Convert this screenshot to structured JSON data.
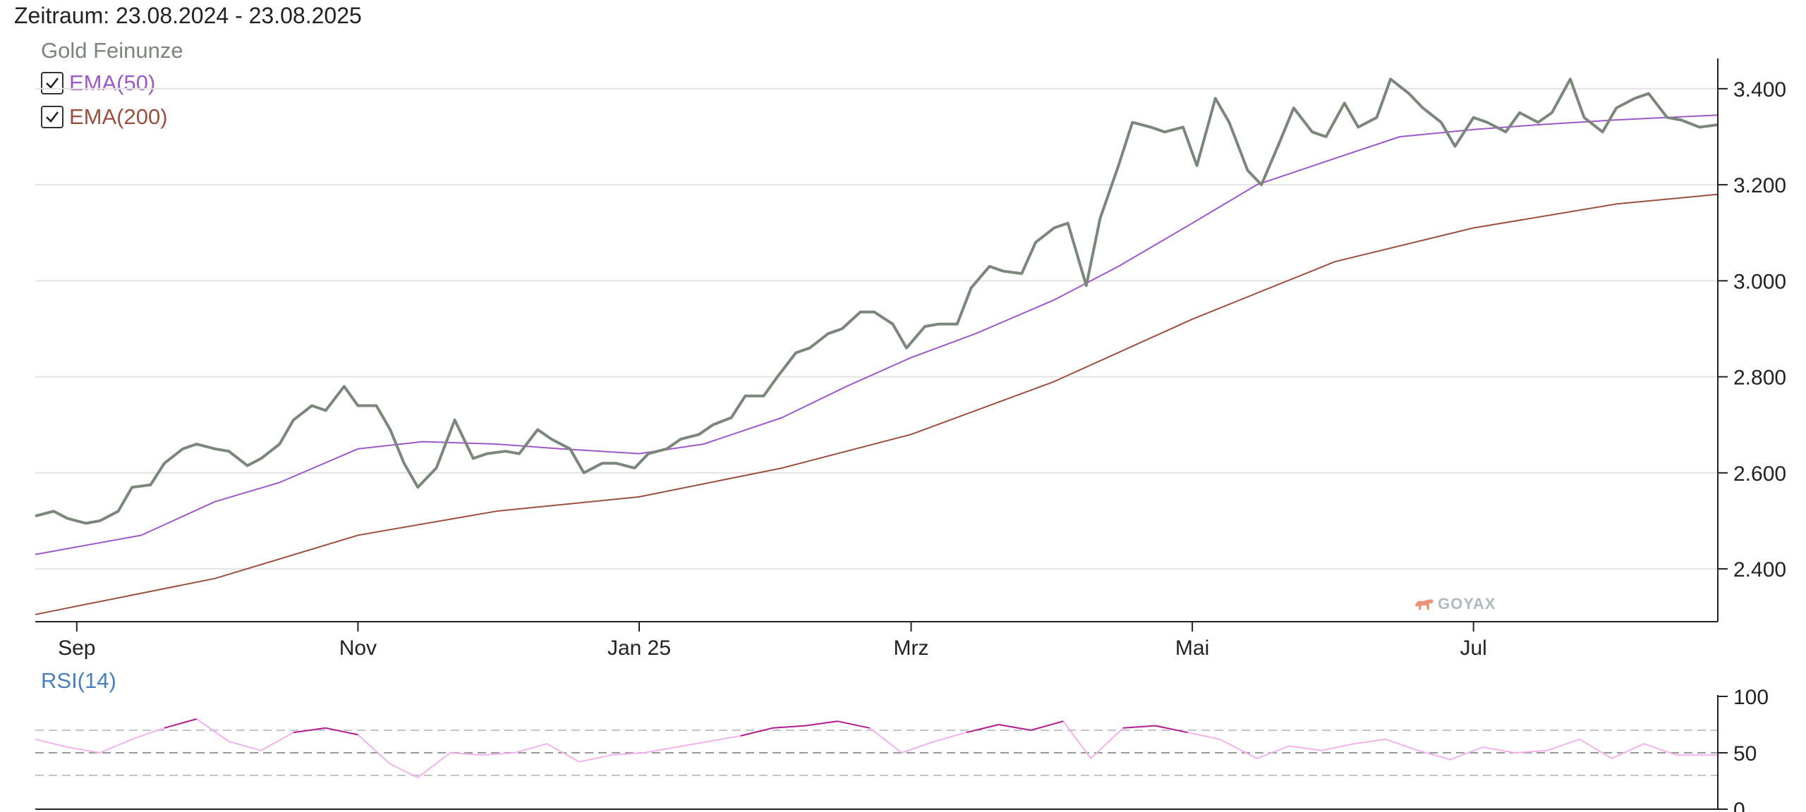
{
  "header": {
    "period": "Zeitraum: 23.08.2024 - 23.08.2025"
  },
  "legend": {
    "title": "Gold Feinunze",
    "ema50": {
      "label": "EMA(50)",
      "checked": true,
      "color": "#9b59c6"
    },
    "ema200": {
      "label": "EMA(200)",
      "checked": true,
      "color": "#9a5040"
    }
  },
  "rsi": {
    "label": "RSI(14)"
  },
  "logo": {
    "text": "GOYAX",
    "color": "#e8957a"
  },
  "colors": {
    "price": "#7b877b",
    "rsi": "#f2b3ec",
    "rsi_extreme": "#b0208e"
  },
  "chart_data": [
    {
      "type": "line",
      "x_start": "2024-08-23",
      "x_end": "2025-08-23",
      "y_axis_side": "right",
      "ylim": [
        2290,
        3460
      ],
      "yticks": [
        2400,
        2600,
        2800,
        3000,
        3200,
        3400
      ],
      "ytick_labels": [
        "2.400",
        "2.600",
        "2.800",
        "3.000",
        "3.200",
        "3.400"
      ],
      "xticks": [
        {
          "date": "2024-09-01",
          "label": "Sep"
        },
        {
          "date": "2024-11-01",
          "label": "Nov"
        },
        {
          "date": "2025-01-01",
          "label": "Jan 25"
        },
        {
          "date": "2025-03-01",
          "label": "Mrz"
        },
        {
          "date": "2025-05-01",
          "label": "Mai"
        },
        {
          "date": "2025-07-01",
          "label": "Jul"
        }
      ],
      "grid": "horizontal",
      "series": [
        {
          "name": "Gold Feinunze",
          "points": [
            [
              "2024-08-23",
              2510
            ],
            [
              "2024-08-27",
              2520
            ],
            [
              "2024-08-30",
              2505
            ],
            [
              "2024-09-03",
              2495
            ],
            [
              "2024-09-06",
              2500
            ],
            [
              "2024-09-10",
              2520
            ],
            [
              "2024-09-13",
              2570
            ],
            [
              "2024-09-17",
              2575
            ],
            [
              "2024-09-20",
              2620
            ],
            [
              "2024-09-24",
              2650
            ],
            [
              "2024-09-27",
              2660
            ],
            [
              "2024-10-01",
              2650
            ],
            [
              "2024-10-04",
              2645
            ],
            [
              "2024-10-08",
              2615
            ],
            [
              "2024-10-11",
              2630
            ],
            [
              "2024-10-15",
              2660
            ],
            [
              "2024-10-18",
              2710
            ],
            [
              "2024-10-22",
              2740
            ],
            [
              "2024-10-25",
              2730
            ],
            [
              "2024-10-29",
              2780
            ],
            [
              "2024-11-01",
              2740
            ],
            [
              "2024-11-05",
              2740
            ],
            [
              "2024-11-08",
              2690
            ],
            [
              "2024-11-11",
              2620
            ],
            [
              "2024-11-14",
              2570
            ],
            [
              "2024-11-18",
              2610
            ],
            [
              "2024-11-22",
              2710
            ],
            [
              "2024-11-26",
              2630
            ],
            [
              "2024-11-29",
              2640
            ],
            [
              "2024-12-03",
              2645
            ],
            [
              "2024-12-06",
              2640
            ],
            [
              "2024-12-10",
              2690
            ],
            [
              "2024-12-13",
              2670
            ],
            [
              "2024-12-17",
              2650
            ],
            [
              "2024-12-20",
              2600
            ],
            [
              "2024-12-24",
              2620
            ],
            [
              "2024-12-27",
              2620
            ],
            [
              "2024-12-31",
              2610
            ],
            [
              "2025-01-03",
              2640
            ],
            [
              "2025-01-07",
              2650
            ],
            [
              "2025-01-10",
              2670
            ],
            [
              "2025-01-14",
              2680
            ],
            [
              "2025-01-17",
              2700
            ],
            [
              "2025-01-21",
              2715
            ],
            [
              "2025-01-24",
              2760
            ],
            [
              "2025-01-28",
              2760
            ],
            [
              "2025-01-31",
              2800
            ],
            [
              "2025-02-04",
              2850
            ],
            [
              "2025-02-07",
              2860
            ],
            [
              "2025-02-11",
              2890
            ],
            [
              "2025-02-14",
              2900
            ],
            [
              "2025-02-18",
              2935
            ],
            [
              "2025-02-21",
              2935
            ],
            [
              "2025-02-25",
              2910
            ],
            [
              "2025-02-28",
              2860
            ],
            [
              "2025-03-04",
              2905
            ],
            [
              "2025-03-07",
              2910
            ],
            [
              "2025-03-11",
              2910
            ],
            [
              "2025-03-14",
              2985
            ],
            [
              "2025-03-18",
              3030
            ],
            [
              "2025-03-21",
              3020
            ],
            [
              "2025-03-25",
              3015
            ],
            [
              "2025-03-28",
              3080
            ],
            [
              "2025-04-01",
              3110
            ],
            [
              "2025-04-04",
              3120
            ],
            [
              "2025-04-08",
              2990
            ],
            [
              "2025-04-11",
              3130
            ],
            [
              "2025-04-15",
              3240
            ],
            [
              "2025-04-18",
              3330
            ],
            [
              "2025-04-22",
              3320
            ],
            [
              "2025-04-25",
              3310
            ],
            [
              "2025-04-29",
              3320
            ],
            [
              "2025-05-02",
              3240
            ],
            [
              "2025-05-06",
              3380
            ],
            [
              "2025-05-09",
              3330
            ],
            [
              "2025-05-13",
              3230
            ],
            [
              "2025-05-16",
              3200
            ],
            [
              "2025-05-20",
              3290
            ],
            [
              "2025-05-23",
              3360
            ],
            [
              "2025-05-27",
              3310
            ],
            [
              "2025-05-30",
              3300
            ],
            [
              "2025-06-03",
              3370
            ],
            [
              "2025-06-06",
              3320
            ],
            [
              "2025-06-10",
              3340
            ],
            [
              "2025-06-13",
              3420
            ],
            [
              "2025-06-17",
              3390
            ],
            [
              "2025-06-20",
              3360
            ],
            [
              "2025-06-24",
              3330
            ],
            [
              "2025-06-27",
              3280
            ],
            [
              "2025-07-01",
              3340
            ],
            [
              "2025-07-04",
              3330
            ],
            [
              "2025-07-08",
              3310
            ],
            [
              "2025-07-11",
              3350
            ],
            [
              "2025-07-15",
              3330
            ],
            [
              "2025-07-18",
              3350
            ],
            [
              "2025-07-22",
              3420
            ],
            [
              "2025-07-25",
              3340
            ],
            [
              "2025-07-29",
              3310
            ],
            [
              "2025-08-01",
              3360
            ],
            [
              "2025-08-05",
              3380
            ],
            [
              "2025-08-08",
              3390
            ],
            [
              "2025-08-12",
              3340
            ],
            [
              "2025-08-15",
              3335
            ],
            [
              "2025-08-19",
              3320
            ],
            [
              "2025-08-23",
              3325
            ]
          ]
        },
        {
          "name": "EMA(50)",
          "points": [
            [
              "2024-08-23",
              2430
            ],
            [
              "2024-09-15",
              2470
            ],
            [
              "2024-10-01",
              2540
            ],
            [
              "2024-10-15",
              2580
            ],
            [
              "2024-11-01",
              2650
            ],
            [
              "2024-11-15",
              2665
            ],
            [
              "2024-12-01",
              2660
            ],
            [
              "2024-12-15",
              2650
            ],
            [
              "2025-01-01",
              2640
            ],
            [
              "2025-01-15",
              2660
            ],
            [
              "2025-02-01",
              2715
            ],
            [
              "2025-02-15",
              2780
            ],
            [
              "2025-03-01",
              2840
            ],
            [
              "2025-03-15",
              2890
            ],
            [
              "2025-04-01",
              2960
            ],
            [
              "2025-04-15",
              3030
            ],
            [
              "2025-05-01",
              3120
            ],
            [
              "2025-05-15",
              3200
            ],
            [
              "2025-06-01",
              3255
            ],
            [
              "2025-06-15",
              3300
            ],
            [
              "2025-07-01",
              3315
            ],
            [
              "2025-07-15",
              3325
            ],
            [
              "2025-08-01",
              3335
            ],
            [
              "2025-08-23",
              3345
            ]
          ]
        },
        {
          "name": "EMA(200)",
          "points": [
            [
              "2024-08-23",
              2305
            ],
            [
              "2024-10-01",
              2380
            ],
            [
              "2024-11-01",
              2470
            ],
            [
              "2024-12-01",
              2520
            ],
            [
              "2025-01-01",
              2550
            ],
            [
              "2025-02-01",
              2610
            ],
            [
              "2025-03-01",
              2680
            ],
            [
              "2025-04-01",
              2790
            ],
            [
              "2025-05-01",
              2920
            ],
            [
              "2025-06-01",
              3040
            ],
            [
              "2025-07-01",
              3110
            ],
            [
              "2025-08-01",
              3160
            ],
            [
              "2025-08-23",
              3180
            ]
          ]
        }
      ]
    },
    {
      "type": "line",
      "ylim": [
        0,
        100
      ],
      "yticks": [
        0,
        50,
        100
      ],
      "ytick_labels": [
        "0",
        "50",
        "100"
      ],
      "reference_lines": [
        30,
        50,
        70
      ],
      "x_start": "2024-08-23",
      "x_end": "2025-08-23",
      "series": [
        {
          "name": "RSI(14)",
          "points": [
            [
              "2024-08-23",
              62
            ],
            [
              "2024-08-30",
              55
            ],
            [
              "2024-09-06",
              50
            ],
            [
              "2024-09-13",
              62
            ],
            [
              "2024-09-20",
              72
            ],
            [
              "2024-09-27",
              80
            ],
            [
              "2024-10-04",
              60
            ],
            [
              "2024-10-11",
              52
            ],
            [
              "2024-10-18",
              68
            ],
            [
              "2024-10-25",
              72
            ],
            [
              "2024-11-01",
              66
            ],
            [
              "2024-11-08",
              40
            ],
            [
              "2024-11-14",
              28
            ],
            [
              "2024-11-21",
              50
            ],
            [
              "2024-11-28",
              48
            ],
            [
              "2024-12-05",
              50
            ],
            [
              "2024-12-12",
              58
            ],
            [
              "2024-12-19",
              42
            ],
            [
              "2024-12-26",
              48
            ],
            [
              "2025-01-02",
              50
            ],
            [
              "2025-01-09",
              55
            ],
            [
              "2025-01-16",
              60
            ],
            [
              "2025-01-23",
              65
            ],
            [
              "2025-01-30",
              72
            ],
            [
              "2025-02-06",
              74
            ],
            [
              "2025-02-13",
              78
            ],
            [
              "2025-02-20",
              72
            ],
            [
              "2025-02-27",
              50
            ],
            [
              "2025-03-06",
              60
            ],
            [
              "2025-03-13",
              68
            ],
            [
              "2025-03-20",
              75
            ],
            [
              "2025-03-27",
              70
            ],
            [
              "2025-04-03",
              78
            ],
            [
              "2025-04-09",
              45
            ],
            [
              "2025-04-16",
              72
            ],
            [
              "2025-04-23",
              74
            ],
            [
              "2025-04-30",
              68
            ],
            [
              "2025-05-07",
              62
            ],
            [
              "2025-05-15",
              45
            ],
            [
              "2025-05-22",
              56
            ],
            [
              "2025-05-29",
              52
            ],
            [
              "2025-06-05",
              58
            ],
            [
              "2025-06-12",
              62
            ],
            [
              "2025-06-19",
              52
            ],
            [
              "2025-06-26",
              44
            ],
            [
              "2025-07-03",
              55
            ],
            [
              "2025-07-10",
              50
            ],
            [
              "2025-07-17",
              52
            ],
            [
              "2025-07-24",
              62
            ],
            [
              "2025-07-31",
              45
            ],
            [
              "2025-08-07",
              58
            ],
            [
              "2025-08-14",
              48
            ],
            [
              "2025-08-23",
              48
            ]
          ]
        }
      ]
    }
  ]
}
